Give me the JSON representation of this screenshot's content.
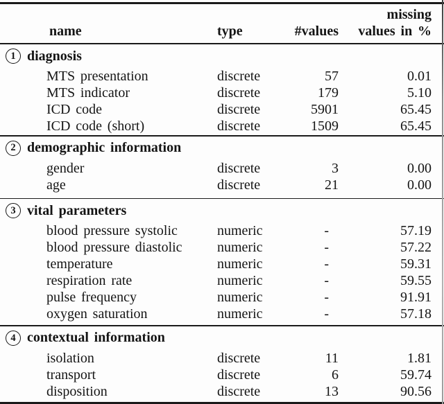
{
  "table": {
    "columns": [
      {
        "label": "name"
      },
      {
        "label": "type"
      },
      {
        "label": "#values"
      },
      {
        "label_line1": "missing",
        "label_line2": "values in %"
      }
    ],
    "sections": [
      {
        "number": "1",
        "title": "diagnosis",
        "rows": [
          {
            "name": "MTS presentation",
            "type": "discrete",
            "values": "57",
            "missing": "0.01"
          },
          {
            "name": "MTS indicator",
            "type": "discrete",
            "values": "179",
            "missing": "5.10"
          },
          {
            "name": "ICD code",
            "type": "discrete",
            "values": "5901",
            "missing": "65.45"
          },
          {
            "name": "ICD code (short)",
            "type": "discrete",
            "values": "1509",
            "missing": "65.45"
          }
        ]
      },
      {
        "number": "2",
        "title": "demographic information",
        "rows": [
          {
            "name": "gender",
            "type": "discrete",
            "values": "3",
            "missing": "0.00"
          },
          {
            "name": "age",
            "type": "discrete",
            "values": "21",
            "missing": "0.00"
          }
        ]
      },
      {
        "number": "3",
        "title": "vital parameters",
        "rows": [
          {
            "name": "blood pressure systolic",
            "type": "numeric",
            "values": "-",
            "missing": "57.19"
          },
          {
            "name": "blood pressure diastolic",
            "type": "numeric",
            "values": "-",
            "missing": "57.22"
          },
          {
            "name": "temperature",
            "type": "numeric",
            "values": "-",
            "missing": "59.31"
          },
          {
            "name": "respiration rate",
            "type": "numeric",
            "values": "-",
            "missing": "59.55"
          },
          {
            "name": "pulse frequency",
            "type": "numeric",
            "values": "-",
            "missing": "91.91"
          },
          {
            "name": "oxygen saturation",
            "type": "numeric",
            "values": "-",
            "missing": "57.18"
          }
        ]
      },
      {
        "number": "4",
        "title": "contextual information",
        "rows": [
          {
            "name": "isolation",
            "type": "discrete",
            "values": "11",
            "missing": "1.81"
          },
          {
            "name": "transport",
            "type": "discrete",
            "values": "6",
            "missing": "59.74"
          },
          {
            "name": "disposition",
            "type": "discrete",
            "values": "13",
            "missing": "90.56"
          }
        ]
      }
    ]
  },
  "colors": {
    "text": "#141414",
    "rule": "#1a1a1a",
    "background": "#fdfdfd"
  }
}
